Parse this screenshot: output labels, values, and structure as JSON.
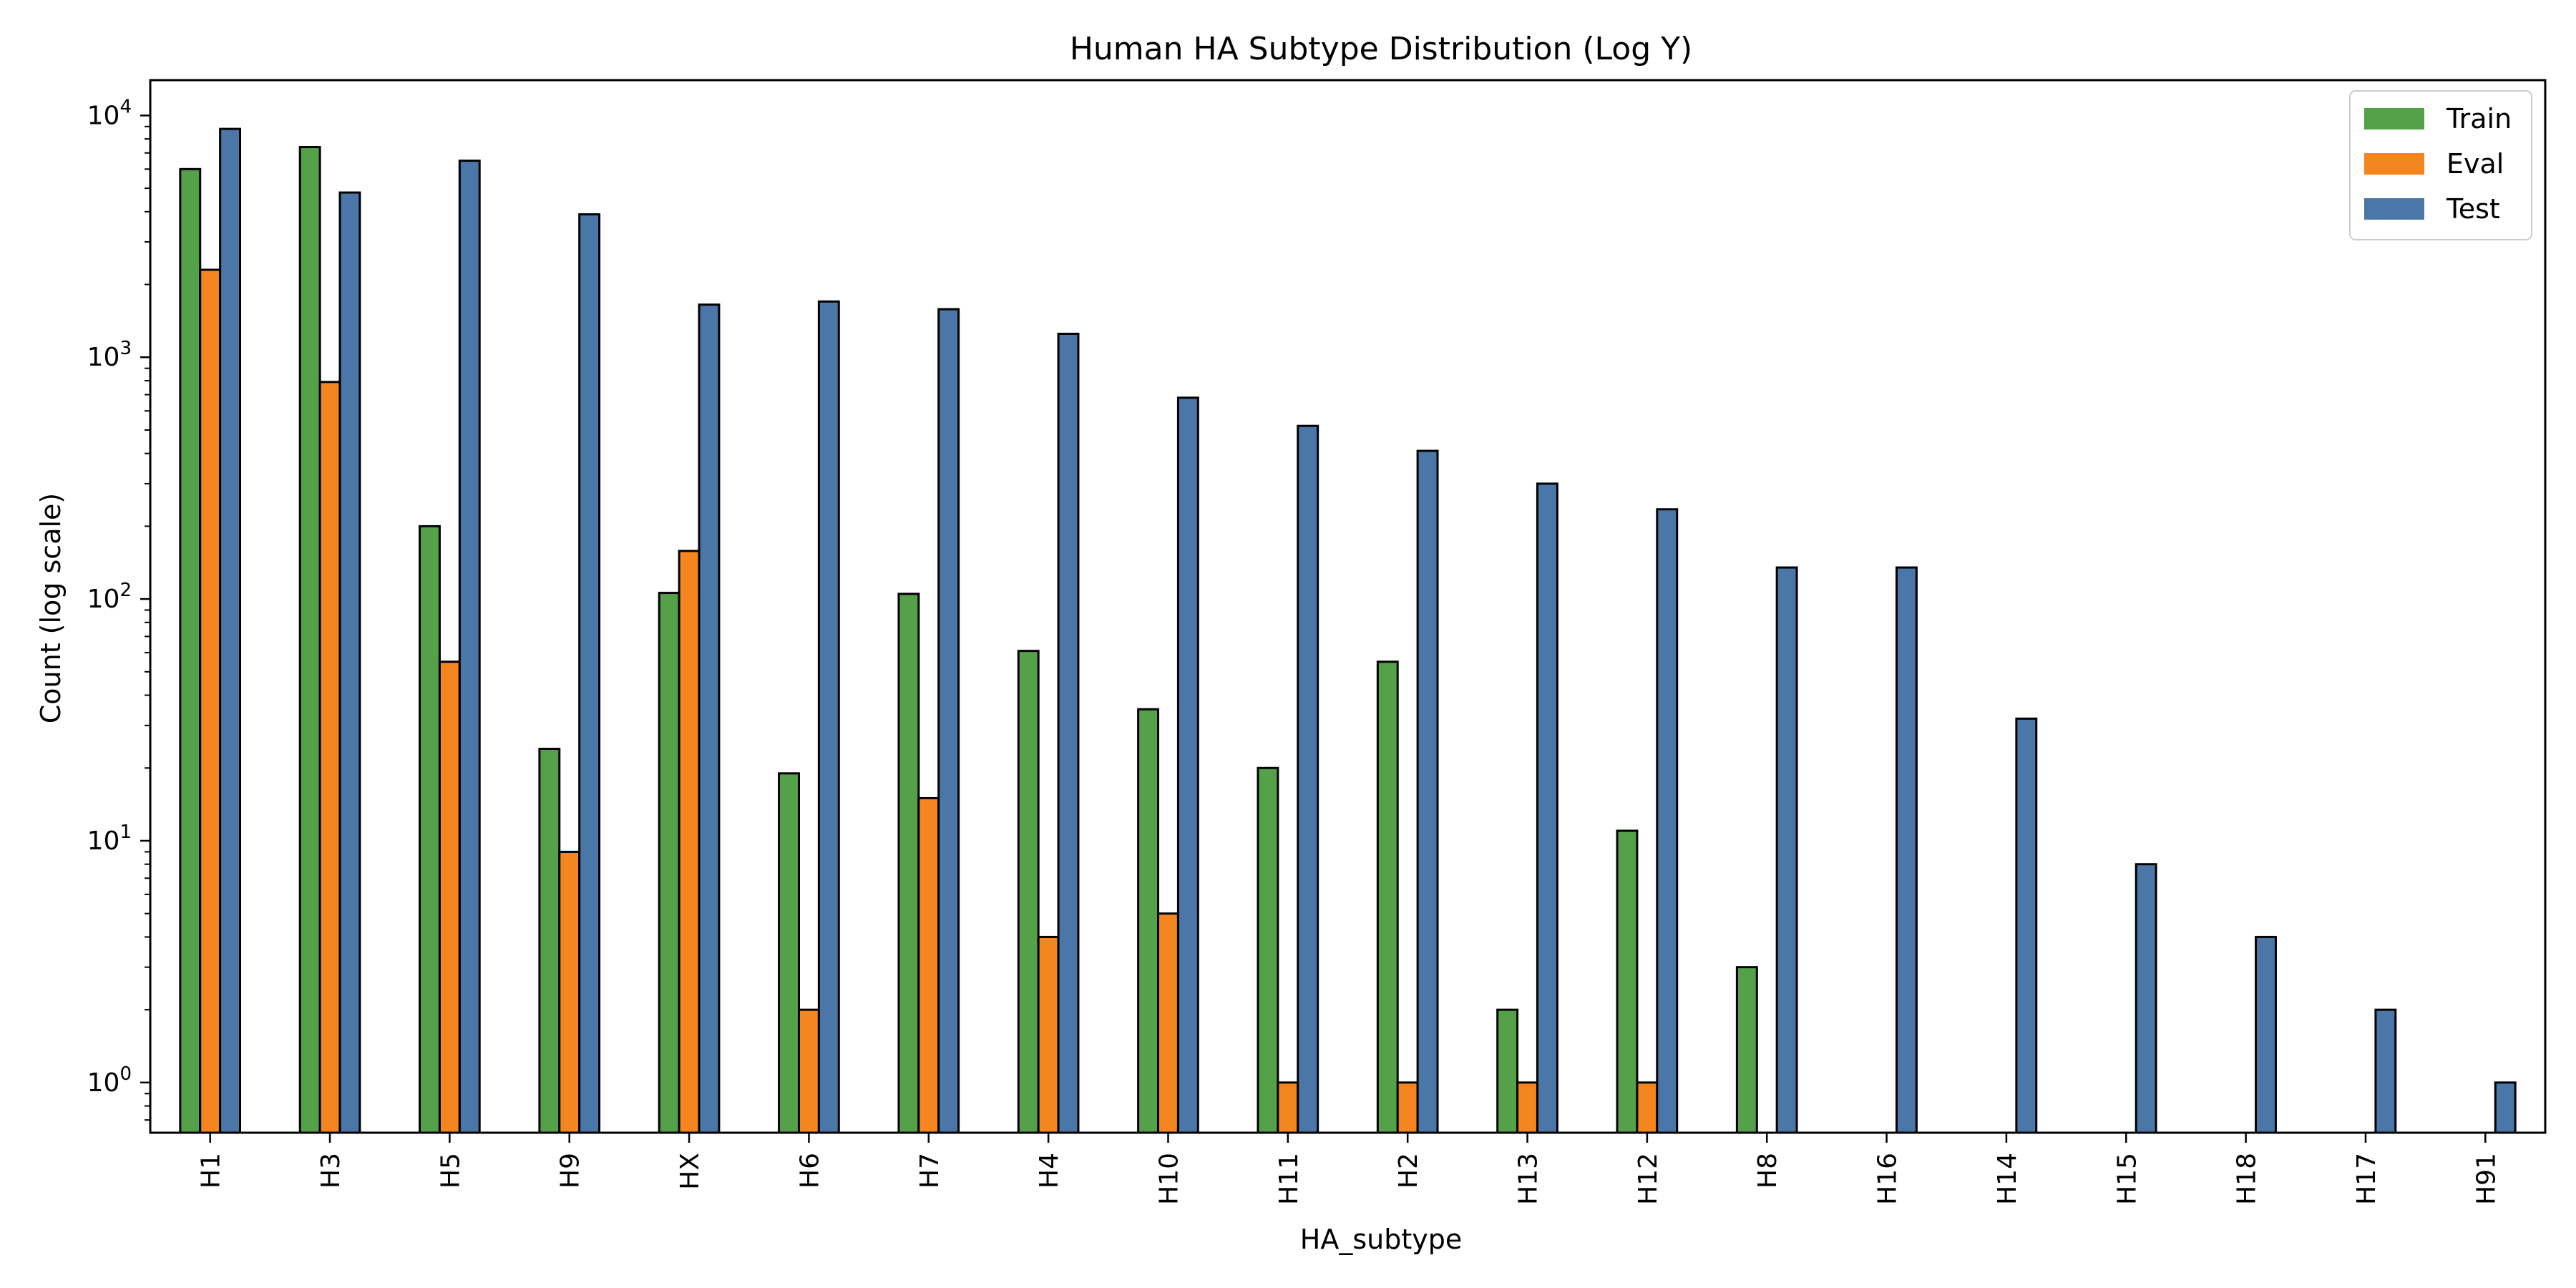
{
  "chart_data": {
    "type": "bar",
    "title": "Human HA Subtype Distribution (Log Y)",
    "xlabel": "HA_subtype",
    "ylabel": "Count (log scale)",
    "yscale": "log",
    "ylim": [
      0.62,
      14000
    ],
    "yticks": [
      {
        "value": 1,
        "base": "10",
        "exp": "0"
      },
      {
        "value": 10,
        "base": "10",
        "exp": "1"
      },
      {
        "value": 100,
        "base": "10",
        "exp": "2"
      },
      {
        "value": 1000,
        "base": "10",
        "exp": "3"
      },
      {
        "value": 10000,
        "base": "10",
        "exp": "4"
      }
    ],
    "grid": false,
    "legend_position": "top-right",
    "categories": [
      "H1",
      "H3",
      "H5",
      "H9",
      "HX",
      "H6",
      "H7",
      "H4",
      "H10",
      "H11",
      "H2",
      "H13",
      "H12",
      "H8",
      "H16",
      "H14",
      "H15",
      "H18",
      "H17",
      "H91"
    ],
    "series": [
      {
        "name": "Train",
        "color": "#55a14a",
        "values": [
          6000,
          7400,
          200,
          24,
          106,
          19,
          105,
          61,
          35,
          20,
          55,
          2,
          11,
          3,
          null,
          null,
          null,
          null,
          null,
          null
        ]
      },
      {
        "name": "Eval",
        "color": "#f5851f",
        "values": [
          2300,
          790,
          55,
          9,
          158,
          2,
          15,
          4,
          5,
          1,
          1,
          1,
          1,
          null,
          null,
          null,
          null,
          null,
          null,
          null
        ]
      },
      {
        "name": "Test",
        "color": "#4a76a8",
        "values": [
          8800,
          4800,
          6500,
          3900,
          1650,
          1700,
          1580,
          1250,
          680,
          520,
          410,
          300,
          235,
          135,
          135,
          32,
          8,
          4,
          2,
          1
        ]
      }
    ]
  }
}
